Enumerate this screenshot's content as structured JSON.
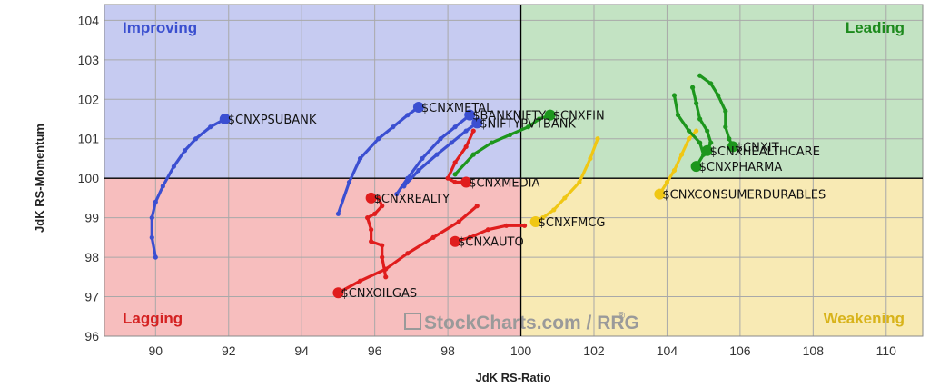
{
  "chart_data": {
    "type": "scatter",
    "xlabel": "JdK RS-Ratio",
    "ylabel": "JdK RS-Momentum",
    "xlim": [
      88.6,
      111.0
    ],
    "ylim": [
      96,
      104.4
    ],
    "x_ticks": [
      90,
      92,
      94,
      96,
      98,
      100,
      102,
      104,
      106,
      108,
      110
    ],
    "y_ticks": [
      96,
      97,
      98,
      99,
      100,
      101,
      102,
      103,
      104
    ],
    "grid": true,
    "center": [
      100,
      100
    ],
    "quadrants": [
      {
        "name": "Improving",
        "color": "#3a4fcf",
        "background": "#c6cbf1",
        "position": "top-left"
      },
      {
        "name": "Leading",
        "color": "#1d8a1d",
        "background": "#c3e3c3",
        "position": "top-right"
      },
      {
        "name": "Lagging",
        "color": "#d42121",
        "background": "#f7bebe",
        "position": "bottom-left"
      },
      {
        "name": "Weakening",
        "color": "#d8b31a",
        "background": "#f8eab4",
        "position": "bottom-right"
      }
    ],
    "watermark": {
      "text": "StockCharts.com / RRG",
      "reg": "®"
    },
    "series": [
      {
        "name": "$CNXPSUBANK",
        "color": "#3b4fd1",
        "points": [
          [
            90.0,
            98.0
          ],
          [
            89.9,
            98.5
          ],
          [
            89.9,
            99.0
          ],
          [
            90.0,
            99.4
          ],
          [
            90.2,
            99.8
          ],
          [
            90.5,
            100.3
          ],
          [
            90.8,
            100.7
          ],
          [
            91.1,
            101.0
          ],
          [
            91.5,
            101.3
          ],
          [
            91.9,
            101.5
          ]
        ]
      },
      {
        "name": "$CNXMETAL",
        "color": "#3b4fd1",
        "points": [
          [
            95.0,
            99.1
          ],
          [
            95.3,
            99.9
          ],
          [
            95.6,
            100.5
          ],
          [
            96.1,
            101.0
          ],
          [
            96.5,
            101.3
          ],
          [
            96.9,
            101.6
          ],
          [
            97.2,
            101.8
          ]
        ]
      },
      {
        "name": "$BANKNIFTY",
        "color": "#3b4fd1",
        "points": [
          [
            96.6,
            99.6
          ],
          [
            96.9,
            100.0
          ],
          [
            97.3,
            100.5
          ],
          [
            97.8,
            101.0
          ],
          [
            98.2,
            101.3
          ],
          [
            98.6,
            101.6
          ]
        ]
      },
      {
        "name": "$NIFTYPVTBANK",
        "color": "#3b4fd1",
        "points": [
          [
            96.8,
            99.8
          ],
          [
            97.2,
            100.2
          ],
          [
            97.7,
            100.6
          ],
          [
            98.1,
            100.9
          ],
          [
            98.5,
            101.2
          ],
          [
            98.8,
            101.4
          ]
        ]
      },
      {
        "name": "$CNXFIN",
        "color": "#1d961d",
        "points": [
          [
            98.2,
            100.1
          ],
          [
            98.7,
            100.6
          ],
          [
            99.2,
            100.9
          ],
          [
            99.7,
            101.1
          ],
          [
            100.2,
            101.3
          ],
          [
            100.5,
            101.5
          ],
          [
            100.8,
            101.6
          ]
        ]
      },
      {
        "name": "$CNXMEDIA",
        "color": "#e01d1d",
        "points": [
          [
            98.7,
            101.2
          ],
          [
            98.5,
            100.8
          ],
          [
            98.2,
            100.4
          ],
          [
            98.0,
            100.0
          ],
          [
            98.2,
            99.9
          ],
          [
            98.5,
            99.9
          ]
        ]
      },
      {
        "name": "$CNXREALTY",
        "color": "#e01d1d",
        "points": [
          [
            96.3,
            97.5
          ],
          [
            96.2,
            98.0
          ],
          [
            96.2,
            98.3
          ],
          [
            95.9,
            98.4
          ],
          [
            95.9,
            98.7
          ],
          [
            95.8,
            99.0
          ],
          [
            96.0,
            99.1
          ],
          [
            96.2,
            99.3
          ],
          [
            96.1,
            99.5
          ],
          [
            95.9,
            99.5
          ]
        ]
      },
      {
        "name": "$CNXOILGAS",
        "color": "#e01d1d",
        "points": [
          [
            98.8,
            99.3
          ],
          [
            98.3,
            98.9
          ],
          [
            97.6,
            98.5
          ],
          [
            96.9,
            98.1
          ],
          [
            96.3,
            97.7
          ],
          [
            95.6,
            97.4
          ],
          [
            95.0,
            97.1
          ]
        ]
      },
      {
        "name": "$CNXAUTO",
        "color": "#e01d1d",
        "points": [
          [
            100.1,
            98.8
          ],
          [
            99.6,
            98.8
          ],
          [
            99.1,
            98.7
          ],
          [
            98.6,
            98.5
          ],
          [
            98.2,
            98.4
          ]
        ]
      },
      {
        "name": "$CNXFMCG",
        "color": "#f0c714",
        "points": [
          [
            102.1,
            101.0
          ],
          [
            101.9,
            100.5
          ],
          [
            101.6,
            99.9
          ],
          [
            101.2,
            99.5
          ],
          [
            100.9,
            99.2
          ],
          [
            100.6,
            99.0
          ],
          [
            100.4,
            98.9
          ]
        ]
      },
      {
        "name": "$CNXCONSUMERDURABLES",
        "color": "#f0c714",
        "points": [
          [
            104.8,
            101.2
          ],
          [
            104.6,
            101.0
          ],
          [
            104.4,
            100.6
          ],
          [
            104.2,
            100.2
          ],
          [
            104.0,
            99.9
          ],
          [
            103.8,
            99.6
          ]
        ]
      },
      {
        "name": "$CNXIT",
        "color": "#1d961d",
        "points": [
          [
            104.9,
            102.6
          ],
          [
            105.2,
            102.4
          ],
          [
            105.4,
            102.1
          ],
          [
            105.6,
            101.7
          ],
          [
            105.6,
            101.3
          ],
          [
            105.7,
            101.0
          ],
          [
            105.8,
            100.8
          ]
        ]
      },
      {
        "name": "$CNXHEALTHCARE",
        "color": "#1d961d",
        "points": [
          [
            104.7,
            102.3
          ],
          [
            104.8,
            101.9
          ],
          [
            104.9,
            101.5
          ],
          [
            105.1,
            101.2
          ],
          [
            105.2,
            100.9
          ],
          [
            105.1,
            100.7
          ]
        ]
      },
      {
        "name": "$CNXPHARMA",
        "color": "#1d961d",
        "points": [
          [
            104.2,
            102.1
          ],
          [
            104.3,
            101.6
          ],
          [
            104.6,
            101.2
          ],
          [
            104.9,
            100.9
          ],
          [
            105.0,
            100.6
          ],
          [
            104.8,
            100.3
          ]
        ]
      }
    ]
  }
}
